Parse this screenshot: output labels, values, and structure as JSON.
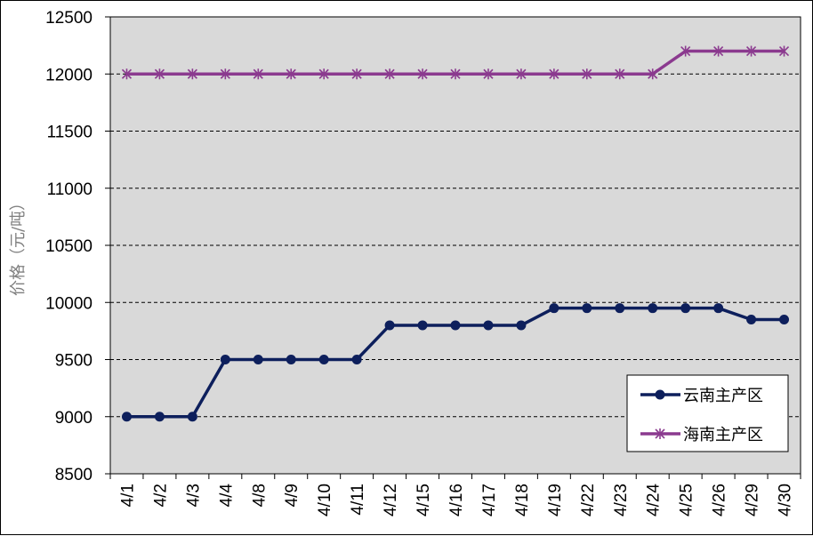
{
  "chart_data": {
    "type": "line",
    "title": "",
    "xlabel": "",
    "ylabel": "价格（元/吨）",
    "ylim": [
      8500,
      12500
    ],
    "yticks": [
      8500,
      9000,
      9500,
      10000,
      10500,
      11000,
      11500,
      12000,
      12500
    ],
    "grid": "horizontal dashed",
    "legend_position": "bottom-right",
    "categories": [
      "4/1",
      "4/2",
      "4/3",
      "4/4",
      "4/8",
      "4/9",
      "4/10",
      "4/11",
      "4/12",
      "4/15",
      "4/16",
      "4/17",
      "4/18",
      "4/19",
      "4/22",
      "4/23",
      "4/24",
      "4/25",
      "4/26",
      "4/29",
      "4/30"
    ],
    "series": [
      {
        "name": "云南主产区",
        "color": "#0d1f5c",
        "marker": "circle",
        "values": [
          9000,
          9000,
          9000,
          9500,
          9500,
          9500,
          9500,
          9500,
          9800,
          9800,
          9800,
          9800,
          9800,
          9950,
          9950,
          9950,
          9950,
          9950,
          9950,
          9850,
          9850
        ]
      },
      {
        "name": "海南主产区",
        "color": "#8b3a8f",
        "marker": "asterisk",
        "values": [
          12000,
          12000,
          12000,
          12000,
          12000,
          12000,
          12000,
          12000,
          12000,
          12000,
          12000,
          12000,
          12000,
          12000,
          12000,
          12000,
          12000,
          12200,
          12200,
          12200,
          12200
        ]
      }
    ]
  }
}
